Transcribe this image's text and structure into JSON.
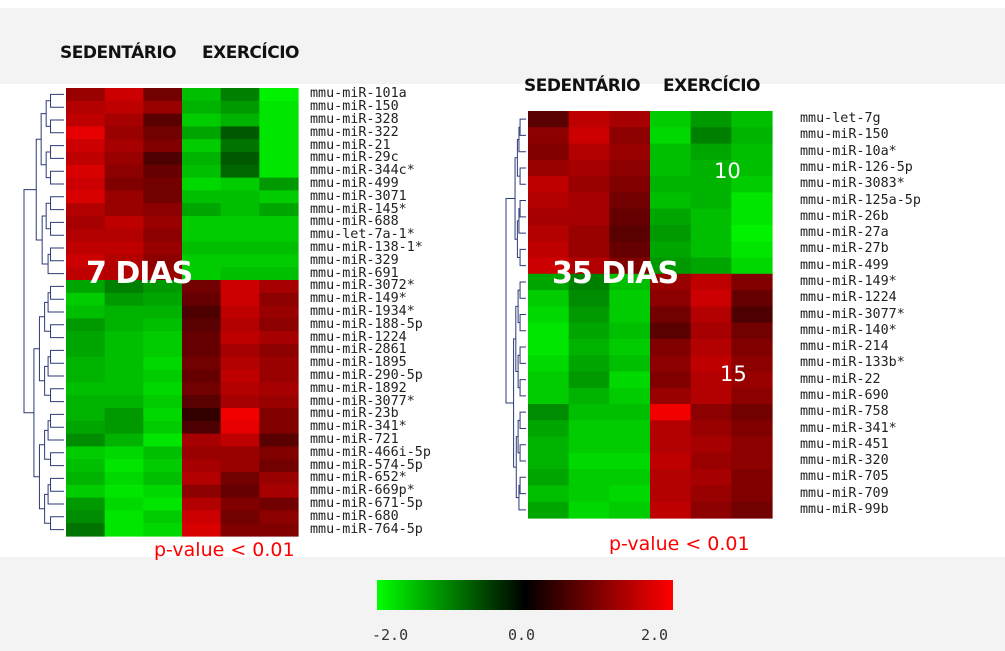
{
  "chart_data": [
    {
      "type": "heatmap",
      "panel_label": "7 DIAS",
      "group_labels": [
        "SEDENTÁRIO",
        "EXERCÍCIO"
      ],
      "columns_per_group": 3,
      "significance": "p-value < 0.01",
      "rows": [
        "mmu-miR-101a",
        "mmu-miR-150",
        "mmu-miR-328",
        "mmu-miR-322",
        "mmu-miR-21",
        "mmu-miR-29c",
        "mmu-miR-344c*",
        "mmu-miR-499",
        "mmu-miR-3071",
        "mmu-miR-145*",
        "mmu-miR-688",
        "mmu-let-7a-1*",
        "mmu-miR-138-1*",
        "mmu-miR-329",
        "mmu-miR-691",
        "mmu-miR-3072*",
        "mmu-miR-149*",
        "mmu-miR-1934*",
        "mmu-miR-188-5p",
        "mmu-miR-1224",
        "mmu-miR-2861",
        "mmu-miR-1895",
        "mmu-miR-290-5p",
        "mmu-miR-1892",
        "mmu-miR-3077*",
        "mmu-miR-23b",
        "mmu-miR-341*",
        "mmu-miR-721",
        "mmu-miR-466i-5p",
        "mmu-miR-574-5p",
        "mmu-miR-652*",
        "mmu-miR-669p*",
        "mmu-miR-671-5p",
        "mmu-miR-680",
        "mmu-miR-764-5p"
      ],
      "up_in_sedentary_rows": 15,
      "values": [
        [
          1.2,
          1.6,
          0.9,
          -1.5,
          -1.0,
          -1.9
        ],
        [
          1.4,
          1.5,
          1.2,
          -1.4,
          -1.2,
          -1.8
        ],
        [
          1.5,
          1.3,
          0.7,
          -1.6,
          -1.4,
          -1.8
        ],
        [
          1.8,
          1.2,
          0.9,
          -1.3,
          -0.7,
          -1.8
        ],
        [
          1.6,
          1.3,
          1.0,
          -1.6,
          -0.9,
          -1.8
        ],
        [
          1.5,
          1.2,
          0.6,
          -1.4,
          -0.7,
          -1.8
        ],
        [
          1.7,
          1.1,
          0.8,
          -1.5,
          -0.8,
          -1.8
        ],
        [
          1.6,
          1.0,
          0.9,
          -1.7,
          -1.6,
          -1.2
        ],
        [
          1.7,
          1.2,
          0.9,
          -1.5,
          -1.5,
          -1.6
        ],
        [
          1.4,
          1.2,
          1.1,
          -1.3,
          -1.5,
          -1.3
        ],
        [
          1.3,
          1.5,
          1.2,
          -1.6,
          -1.6,
          -1.6
        ],
        [
          1.4,
          1.4,
          1.1,
          -1.6,
          -1.6,
          -1.6
        ],
        [
          1.5,
          1.5,
          1.2,
          -1.5,
          -1.5,
          -1.5
        ],
        [
          1.6,
          1.4,
          1.1,
          -1.6,
          -1.6,
          -1.6
        ],
        [
          1.5,
          1.4,
          1.2,
          -1.6,
          -1.5,
          -1.5
        ],
        [
          -1.3,
          -1.0,
          -1.2,
          0.9,
          1.6,
          1.3
        ],
        [
          -1.6,
          -1.2,
          -1.3,
          0.8,
          1.6,
          1.1
        ],
        [
          -1.5,
          -1.4,
          -1.4,
          0.6,
          1.5,
          1.2
        ],
        [
          -1.2,
          -1.4,
          -1.5,
          0.7,
          1.4,
          1.1
        ],
        [
          -1.3,
          -1.5,
          -1.6,
          0.8,
          1.5,
          1.3
        ],
        [
          -1.3,
          -1.5,
          -1.6,
          0.8,
          1.3,
          1.1
        ],
        [
          -1.4,
          -1.5,
          -1.7,
          0.9,
          1.4,
          1.2
        ],
        [
          -1.4,
          -1.5,
          -1.6,
          0.8,
          1.5,
          1.2
        ],
        [
          -1.5,
          -1.5,
          -1.7,
          0.9,
          1.4,
          1.3
        ],
        [
          -1.4,
          -1.4,
          -1.6,
          0.7,
          1.3,
          1.2
        ],
        [
          -1.4,
          -1.2,
          -1.7,
          0.4,
          1.9,
          1.0
        ],
        [
          -1.3,
          -1.2,
          -1.6,
          0.6,
          1.8,
          1.0
        ],
        [
          -1.1,
          -1.4,
          -1.8,
          1.3,
          1.5,
          0.7
        ],
        [
          -1.6,
          -1.7,
          -1.5,
          1.2,
          1.2,
          1.0
        ],
        [
          -1.5,
          -1.8,
          -1.6,
          1.3,
          1.2,
          0.9
        ],
        [
          -1.4,
          -1.7,
          -1.5,
          1.4,
          0.9,
          1.2
        ],
        [
          -1.6,
          -1.8,
          -1.7,
          1.1,
          0.8,
          1.3
        ],
        [
          -1.2,
          -1.7,
          -1.8,
          1.4,
          1.0,
          0.9
        ],
        [
          -1.1,
          -1.8,
          -1.6,
          1.6,
          0.9,
          1.1
        ],
        [
          -0.9,
          -1.8,
          -1.7,
          1.7,
          1.0,
          1.0
        ]
      ]
    },
    {
      "type": "heatmap",
      "panel_label": "35 DIAS",
      "group_labels": [
        "SEDENTÁRIO",
        "EXERCÍCIO"
      ],
      "columns_per_group": 3,
      "significance": "p-value < 0.01",
      "up_count_label": "10",
      "down_count_label": "15",
      "rows": [
        "mmu-let-7g",
        "mmu-miR-150",
        "mmu-miR-10a*",
        "mmu-miR-126-5p",
        "mmu-miR-3083*",
        "mmu-miR-125a-5p",
        "mmu-miR-26b",
        "mmu-miR-27a",
        "mmu-miR-27b",
        "mmu-miR-499",
        "mmu-miR-149*",
        "mmu-miR-1224",
        "mmu-miR-3077*",
        "mmu-miR-140*",
        "mmu-miR-214",
        "mmu-miR-133b*",
        "mmu-miR-22",
        "mmu-miR-690",
        "mmu-miR-758",
        "mmu-miR-341*",
        "mmu-miR-451",
        "mmu-miR-320",
        "mmu-miR-705",
        "mmu-miR-709",
        "mmu-miR-99b"
      ],
      "up_in_sedentary_rows": 10,
      "values": [
        [
          0.7,
          1.5,
          1.3,
          -1.6,
          -1.2,
          -1.5
        ],
        [
          1.1,
          1.6,
          1.1,
          -1.7,
          -1.0,
          -1.4
        ],
        [
          1.0,
          1.4,
          1.2,
          -1.5,
          -1.3,
          -1.5
        ],
        [
          1.2,
          1.3,
          1.1,
          -1.5,
          -1.4,
          -1.5
        ],
        [
          1.5,
          1.2,
          1.0,
          -1.4,
          -1.4,
          -1.6
        ],
        [
          1.4,
          1.3,
          0.9,
          -1.5,
          -1.4,
          -1.8
        ],
        [
          1.3,
          1.3,
          0.8,
          -1.3,
          -1.5,
          -1.8
        ],
        [
          1.4,
          1.2,
          0.7,
          -1.2,
          -1.5,
          -1.9
        ],
        [
          1.5,
          1.2,
          0.8,
          -1.3,
          -1.5,
          -1.8
        ],
        [
          1.6,
          1.4,
          1.0,
          -1.2,
          -1.3,
          -1.7
        ],
        [
          -1.3,
          -1.0,
          -1.5,
          1.2,
          1.5,
          1.0
        ],
        [
          -1.6,
          -1.1,
          -1.6,
          1.1,
          1.6,
          0.8
        ],
        [
          -1.7,
          -1.2,
          -1.6,
          0.9,
          1.4,
          0.6
        ],
        [
          -1.8,
          -1.3,
          -1.5,
          0.7,
          1.3,
          0.9
        ],
        [
          -1.8,
          -1.4,
          -1.6,
          1.0,
          1.4,
          1.0
        ],
        [
          -1.7,
          -1.3,
          -1.5,
          1.1,
          1.5,
          1.1
        ],
        [
          -1.6,
          -1.2,
          -1.7,
          1.0,
          1.4,
          1.2
        ],
        [
          -1.6,
          -1.4,
          -1.6,
          1.2,
          1.4,
          1.1
        ],
        [
          -1.1,
          -1.5,
          -1.5,
          1.9,
          1.1,
          0.9
        ],
        [
          -1.3,
          -1.6,
          -1.6,
          1.4,
          1.2,
          1.0
        ],
        [
          -1.4,
          -1.6,
          -1.6,
          1.4,
          1.3,
          1.1
        ],
        [
          -1.4,
          -1.7,
          -1.7,
          1.5,
          1.2,
          1.1
        ],
        [
          -1.3,
          -1.6,
          -1.6,
          1.4,
          1.3,
          1.0
        ],
        [
          -1.5,
          -1.6,
          -1.7,
          1.4,
          1.2,
          1.0
        ],
        [
          -1.3,
          -1.7,
          -1.6,
          1.5,
          1.1,
          0.9
        ]
      ]
    }
  ],
  "color_scale": {
    "min": -2.0,
    "mid": 0.0,
    "max": 2.0,
    "tick_labels": [
      "-2.0",
      "0.0",
      "2.0"
    ],
    "low_color": "#00ff00",
    "mid_color": "#000000",
    "high_color": "#ff0000"
  }
}
